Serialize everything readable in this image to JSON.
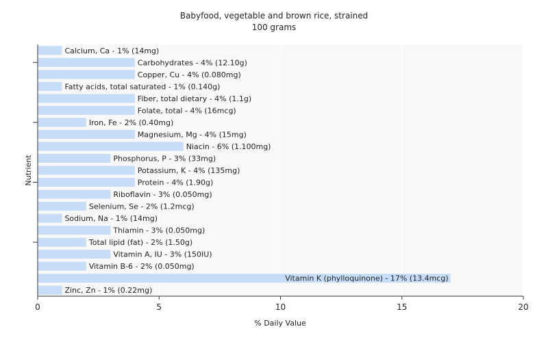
{
  "chart_data": {
    "type": "bar",
    "orientation": "horizontal",
    "title": "Babyfood, vegetable and brown rice, strained",
    "subtitle": "100 grams",
    "xlabel": "% Daily Value",
    "ylabel": "Nutrient",
    "xlim": [
      0,
      20
    ],
    "xticks": [
      0,
      5,
      10,
      15,
      20
    ],
    "grid": true,
    "legend": "none",
    "bar_color": "#c6dcf7",
    "background_color": "#f8f8f8",
    "categories": [
      "Calcium, Ca",
      "Carbohydrates",
      "Copper, Cu",
      "Fatty acids, total saturated",
      "Fiber, total dietary",
      "Folate, total",
      "Iron, Fe",
      "Magnesium, Mg",
      "Niacin",
      "Phosphorus, P",
      "Potassium, K",
      "Protein",
      "Riboflavin",
      "Selenium, Se",
      "Sodium, Na",
      "Thiamin",
      "Total lipid (fat)",
      "Vitamin A, IU",
      "Vitamin B-6",
      "Vitamin K (phylloquinone)",
      "Zinc, Zn"
    ],
    "values": [
      1,
      4,
      4,
      1,
      4,
      4,
      2,
      4,
      6,
      3,
      4,
      4,
      3,
      2,
      1,
      3,
      2,
      3,
      2,
      17,
      1
    ],
    "labels": [
      "Calcium, Ca - 1% (14mg)",
      "Carbohydrates - 4% (12.10g)",
      "Copper, Cu - 4% (0.080mg)",
      "Fatty acids, total saturated - 1% (0.140g)",
      "Fiber, total dietary - 4% (1.1g)",
      "Folate, total - 4% (16mcg)",
      "Iron, Fe - 2% (0.40mg)",
      "Magnesium, Mg - 4% (15mg)",
      "Niacin - 6% (1.100mg)",
      "Phosphorus, P - 3% (33mg)",
      "Potassium, K - 4% (135mg)",
      "Protein - 4% (1.90g)",
      "Riboflavin - 3% (0.050mg)",
      "Selenium, Se - 2% (1.2mcg)",
      "Sodium, Na - 1% (14mg)",
      "Thiamin - 3% (0.050mg)",
      "Total lipid (fat) - 2% (1.50g)",
      "Vitamin A, IU - 3% (150IU)",
      "Vitamin B-6 - 2% (0.050mg)",
      "Vitamin K (phylloquinone) - 17% (13.4mcg)",
      "Zinc, Zn - 1% (0.22mg)"
    ]
  }
}
